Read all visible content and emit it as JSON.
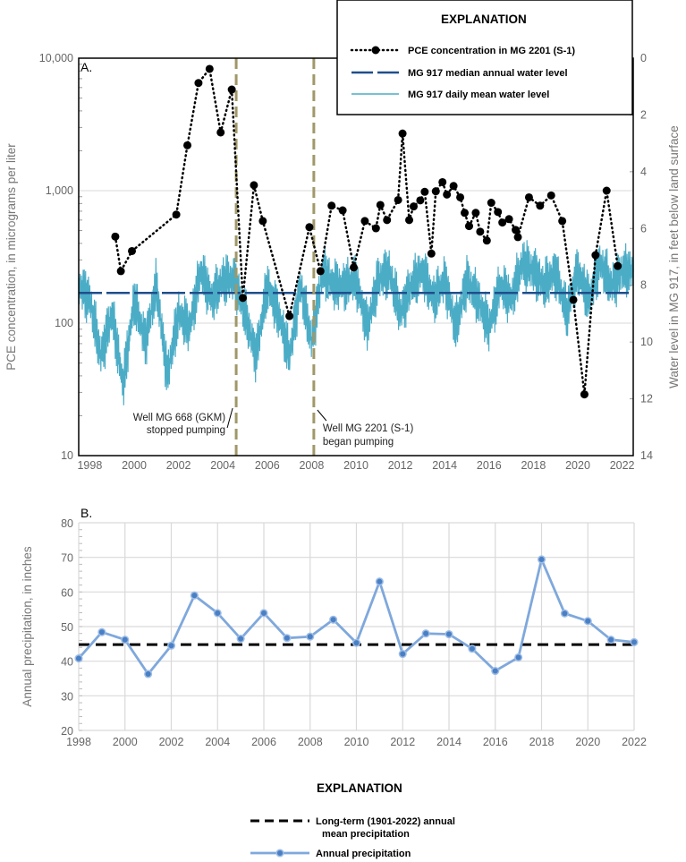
{
  "chart_data": [
    {
      "type": "line",
      "panel_label": "A.",
      "title": "",
      "xlabel": "",
      "ylabel": "PCE concentration, in micrograms per liter",
      "y2label": "Water level in MG 917, in feet below land surface",
      "xlim": [
        1997.5,
        2022.5
      ],
      "ylim": [
        10,
        10000
      ],
      "yscale": "log",
      "y2lim": [
        0,
        14
      ],
      "y2_inverted": true,
      "xticks": [
        "1998",
        "2000",
        "2002",
        "2004",
        "2006",
        "2008",
        "2010",
        "2012",
        "2014",
        "2016",
        "2018",
        "2020",
        "2022"
      ],
      "xtick_values": [
        1998,
        2000,
        2002,
        2004,
        2006,
        2008,
        2010,
        2012,
        2014,
        2016,
        2018,
        2020,
        2022
      ],
      "yticks": [
        "10",
        "100",
        "1,000",
        "10,000"
      ],
      "ytick_values": [
        10,
        100,
        1000,
        10000
      ],
      "y2ticks": [
        "0",
        "2",
        "4",
        "6",
        "8",
        "10",
        "12",
        "14"
      ],
      "y2tick_values": [
        0,
        2,
        4,
        6,
        8,
        10,
        12,
        14
      ],
      "grid": "horizontal",
      "legend": {
        "title": "EXPLANATION",
        "placement": "top-right",
        "entries": [
          "PCE concentration in MG 2201 (S-1)",
          "MG 917 median annual water level",
          "MG 917 daily mean water level"
        ]
      },
      "series": [
        {
          "name": "PCE concentration in MG 2201 (S-1)",
          "axis": "left",
          "color": "#000000",
          "x": [
            1999.15,
            1999.4,
            1999.9,
            2001.9,
            2002.4,
            2002.9,
            2003.4,
            2003.9,
            2004.4,
            2004.9,
            2005.4,
            2005.8,
            2007.0,
            2007.9,
            2008.4,
            2008.9,
            2009.4,
            2009.9,
            2010.4,
            2010.9,
            2011.1,
            2011.4,
            2011.9,
            2012.1,
            2012.4,
            2012.6,
            2012.9,
            2013.1,
            2013.4,
            2013.6,
            2013.9,
            2014.1,
            2014.4,
            2014.7,
            2014.9,
            2015.1,
            2015.4,
            2015.6,
            2015.9,
            2016.1,
            2016.4,
            2016.6,
            2016.9,
            2017.2,
            2017.3,
            2017.8,
            2018.3,
            2018.8,
            2019.3,
            2019.8,
            2020.3,
            2020.8,
            2021.3,
            2021.8
          ],
          "y": [
            450,
            247,
            350,
            660,
            2200,
            6500,
            8300,
            2750,
            5800,
            155,
            1100,
            590,
            113,
            530,
            247,
            770,
            710,
            263,
            590,
            520,
            780,
            600,
            850,
            2700,
            600,
            760,
            845,
            980,
            335,
            990,
            1160,
            935,
            1085,
            890,
            680,
            540,
            680,
            490,
            420,
            810,
            690,
            575,
            610,
            505,
            446,
            890,
            770,
            920,
            590,
            150,
            29,
            326,
            1000,
            270
          ]
        },
        {
          "name": "MG 917 median annual water level",
          "axis": "right",
          "color": "#1f4e8c",
          "value": 8.27
        },
        {
          "name": "MG 917 daily mean water level",
          "axis": "right",
          "color": "#4bacc6",
          "x_start": 1997.5,
          "x_step": 0.5,
          "y": [
            8,
            8.5,
            10.5,
            9,
            11.5,
            8.5,
            10,
            8,
            11.2,
            9,
            9.5,
            7.5,
            8.5,
            7.8,
            7.8,
            9,
            10.5,
            8,
            9,
            10.5,
            8,
            10,
            7.5,
            8,
            8,
            7.8,
            9.5,
            7.8,
            7.5,
            9,
            8,
            7.5,
            8.5,
            7.8,
            9.5,
            7.8,
            8.5,
            9.5,
            8,
            8.5,
            7.2,
            7.5,
            8,
            7.5,
            9,
            7.5,
            8.5,
            7.2,
            8,
            7.5,
            7.5
          ]
        }
      ],
      "vertical_markers": [
        {
          "x": 2004.6,
          "color": "#a09868",
          "label_line1": "Well MG 668 (GKM)",
          "label_line2": "stopped pumping"
        },
        {
          "x": 2008.1,
          "color": "#a09868",
          "label_line1": "Well MG 2201 (S-1)",
          "label_line2": "began pumping"
        }
      ]
    },
    {
      "type": "line",
      "panel_label": "B.",
      "title": "",
      "xlabel": "",
      "ylabel": "Annual precipitation, in inches",
      "xlim": [
        1998,
        2022
      ],
      "ylim": [
        20,
        80
      ],
      "xticks": [
        "1998",
        "2000",
        "2002",
        "2004",
        "2006",
        "2008",
        "2010",
        "2012",
        "2014",
        "2016",
        "2018",
        "2020",
        "2022"
      ],
      "xtick_values": [
        1998,
        2000,
        2002,
        2004,
        2006,
        2008,
        2010,
        2012,
        2014,
        2016,
        2018,
        2020,
        2022
      ],
      "yticks": [
        "20",
        "30",
        "40",
        "50",
        "60",
        "70",
        "80"
      ],
      "ytick_values": [
        20,
        30,
        40,
        50,
        60,
        70,
        80
      ],
      "grid": "both",
      "legend": {
        "title": "EXPLANATION",
        "placement": "bottom",
        "entries": [
          "Long-term (1901-2022) annual",
          "mean precipitation",
          "Annual precipitation"
        ]
      },
      "series": [
        {
          "name": "Annual precipitation",
          "color": "#7fa8dc",
          "x": [
            1998,
            1999,
            2000,
            2001,
            2002,
            2003,
            2004,
            2005,
            2006,
            2007,
            2008,
            2009,
            2010,
            2011,
            2012,
            2013,
            2014,
            2015,
            2016,
            2017,
            2018,
            2019,
            2020,
            2021,
            2022
          ],
          "y": [
            40.8,
            48.4,
            46.2,
            36.3,
            44.5,
            59.0,
            53.9,
            46.5,
            53.9,
            46.7,
            47.1,
            52.0,
            45.3,
            63.0,
            42.1,
            48.0,
            47.8,
            43.6,
            37.2,
            41.1,
            69.4,
            53.8,
            51.6,
            46.2,
            45.5
          ]
        },
        {
          "name": "Long-term (1901-2022) annual mean precipitation",
          "color": "#000000",
          "value": 44.8
        }
      ]
    }
  ]
}
